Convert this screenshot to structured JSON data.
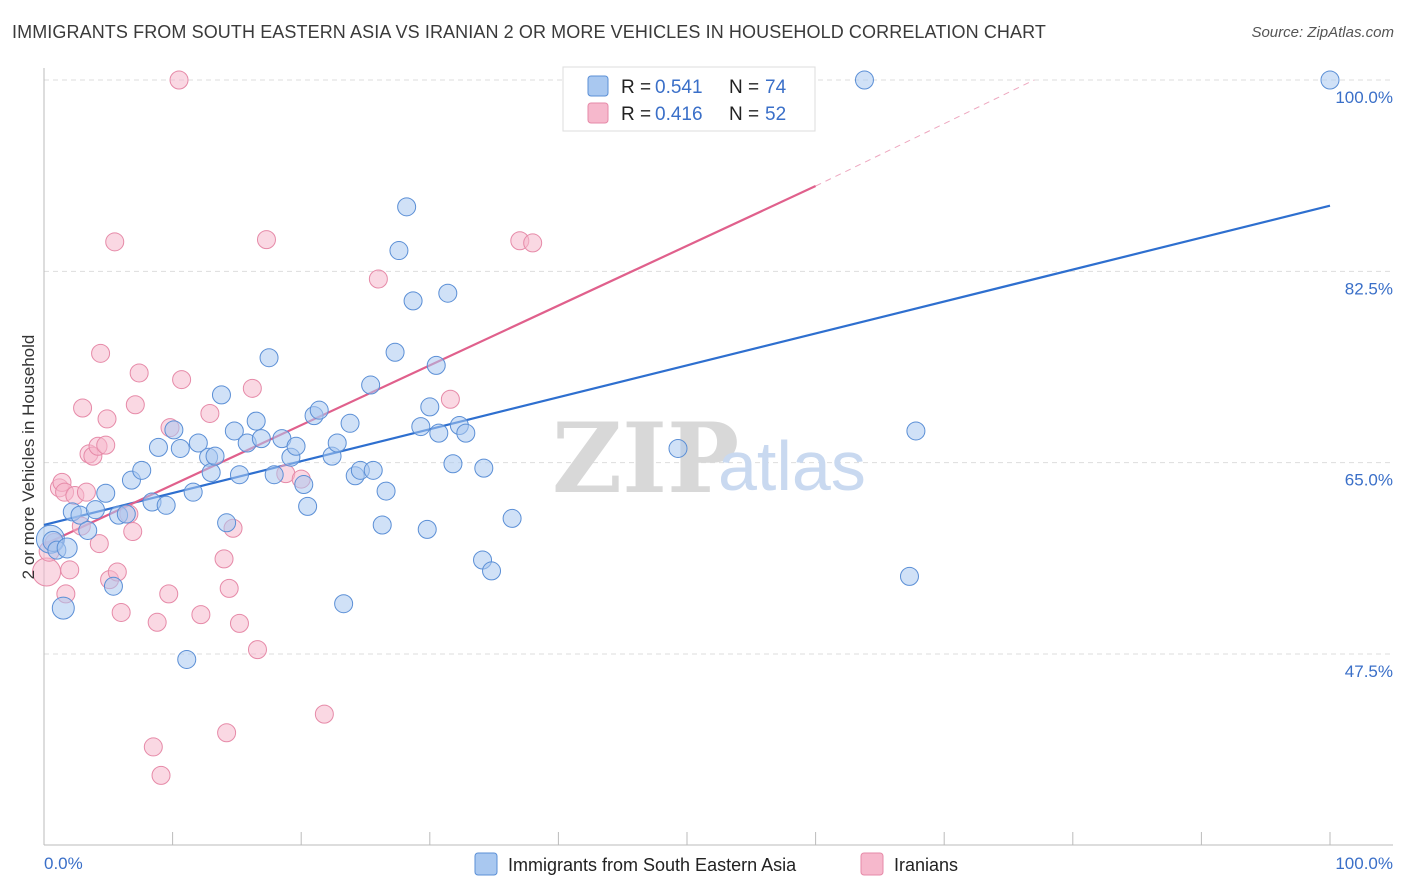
{
  "title": "IMMIGRANTS FROM SOUTH EASTERN ASIA VS IRANIAN 2 OR MORE VEHICLES IN HOUSEHOLD CORRELATION CHART",
  "source": "Source: ZipAtlas.com",
  "watermark": {
    "zip": "ZIP",
    "atlas": "atlas"
  },
  "colors": {
    "blue_fill": "#a9c8f0",
    "blue_stroke": "#5b8fd6",
    "blue_line": "#2e6fcf",
    "pink_fill": "#f6b8cc",
    "pink_stroke": "#e68aa8",
    "pink_line": "#e0608c",
    "tick_text": "#3a6fc8",
    "grid": "#dddddd"
  },
  "legend_box": {
    "rows": [
      {
        "r_label": "R =",
        "r_value": "0.541",
        "n_label": "N =",
        "n_value": "74",
        "color": "blue"
      },
      {
        "r_label": "R =",
        "r_value": "0.416",
        "n_label": "N =",
        "n_value": "52",
        "color": "pink"
      }
    ]
  },
  "chart_data": {
    "type": "scatter",
    "ylabel": "2 or more Vehicles in Household",
    "xlabel": "",
    "x_tick_labels": [
      "0.0%",
      "100.0%"
    ],
    "y_tick_labels": [
      "100.0%",
      "82.5%",
      "65.0%",
      "47.5%"
    ],
    "y_ticks": [
      100.0,
      82.5,
      65.0,
      47.5
    ],
    "xlim": [
      0,
      100
    ],
    "ylim": [
      32.9,
      101.5
    ],
    "grid": true,
    "legend": [
      "Immigrants from South Eastern Asia",
      "Iranians"
    ],
    "series": [
      {
        "name": "Immigrants from South Eastern Asia",
        "color": "blue",
        "trendline": {
          "x0": 0,
          "y0": 59.3,
          "x1": 100,
          "y1": 88.5
        },
        "points": [
          [
            0.5,
            58.0,
            14
          ],
          [
            0.7,
            57.8,
            10
          ],
          [
            1.0,
            57.0,
            9
          ],
          [
            1.5,
            51.7,
            11
          ],
          [
            1.8,
            57.2,
            10
          ],
          [
            2.2,
            60.5,
            9
          ],
          [
            2.8,
            60.2,
            9
          ],
          [
            3.4,
            58.8,
            9
          ],
          [
            4.0,
            60.7,
            9
          ],
          [
            4.8,
            62.2,
            9
          ],
          [
            5.4,
            53.7,
            9
          ],
          [
            5.8,
            60.2,
            9
          ],
          [
            6.4,
            60.3,
            9
          ],
          [
            6.8,
            63.4,
            9
          ],
          [
            7.6,
            64.3,
            9
          ],
          [
            8.4,
            61.4,
            9
          ],
          [
            8.9,
            66.4,
            9
          ],
          [
            9.5,
            61.1,
            9
          ],
          [
            10.1,
            68.0,
            9
          ],
          [
            10.6,
            66.3,
            9
          ],
          [
            11.1,
            47.0,
            9
          ],
          [
            11.6,
            62.3,
            9
          ],
          [
            12.0,
            66.8,
            9
          ],
          [
            12.8,
            65.5,
            9
          ],
          [
            13.0,
            64.1,
            9
          ],
          [
            13.3,
            65.6,
            9
          ],
          [
            13.8,
            71.2,
            9
          ],
          [
            14.2,
            59.5,
            9
          ],
          [
            14.8,
            67.9,
            9
          ],
          [
            15.2,
            63.9,
            9
          ],
          [
            15.8,
            66.8,
            9
          ],
          [
            16.5,
            68.8,
            9
          ],
          [
            16.9,
            67.2,
            9
          ],
          [
            17.5,
            74.6,
            9
          ],
          [
            17.9,
            63.9,
            9
          ],
          [
            18.5,
            67.2,
            9
          ],
          [
            19.2,
            65.5,
            9
          ],
          [
            19.6,
            66.5,
            9
          ],
          [
            20.2,
            63.0,
            9
          ],
          [
            20.5,
            61.0,
            9
          ],
          [
            21.0,
            69.3,
            9
          ],
          [
            21.4,
            69.8,
            9
          ],
          [
            22.4,
            65.6,
            9
          ],
          [
            22.8,
            66.8,
            9
          ],
          [
            23.3,
            52.1,
            9
          ],
          [
            23.8,
            68.6,
            9
          ],
          [
            24.2,
            63.8,
            9
          ],
          [
            24.6,
            64.3,
            9
          ],
          [
            25.4,
            72.1,
            9
          ],
          [
            25.6,
            64.3,
            9
          ],
          [
            26.3,
            59.3,
            9
          ],
          [
            26.6,
            62.4,
            9
          ],
          [
            27.3,
            75.1,
            9
          ],
          [
            27.6,
            84.4,
            9
          ],
          [
            28.2,
            88.4,
            9
          ],
          [
            28.7,
            79.8,
            9
          ],
          [
            29.3,
            68.3,
            9
          ],
          [
            29.8,
            58.9,
            9
          ],
          [
            30.0,
            70.1,
            9
          ],
          [
            30.5,
            73.9,
            9
          ],
          [
            30.7,
            67.7,
            9
          ],
          [
            31.4,
            80.5,
            9
          ],
          [
            31.8,
            64.9,
            9
          ],
          [
            32.3,
            68.4,
            9
          ],
          [
            32.8,
            67.7,
            9
          ],
          [
            34.2,
            64.5,
            9
          ],
          [
            34.1,
            56.1,
            9
          ],
          [
            34.8,
            55.1,
            9
          ],
          [
            36.4,
            59.9,
            9
          ],
          [
            49.3,
            66.3,
            9
          ],
          [
            63.8,
            100.0,
            9
          ],
          [
            67.8,
            67.9,
            9
          ],
          [
            67.3,
            54.6,
            9
          ],
          [
            100.0,
            100.0,
            9
          ]
        ]
      },
      {
        "name": "Iranians",
        "color": "pink",
        "trendline": {
          "x0": 0,
          "y0": 57.5,
          "x1": 60,
          "y1": 90.3,
          "dash_x1": 77,
          "dash_y1": 100.0
        },
        "points": [
          [
            0.2,
            55.0,
            14
          ],
          [
            0.4,
            56.9,
            10
          ],
          [
            0.8,
            57.7,
            9
          ],
          [
            1.2,
            62.7,
            9
          ],
          [
            1.4,
            63.2,
            9
          ],
          [
            1.6,
            62.3,
            9
          ],
          [
            1.7,
            53.0,
            9
          ],
          [
            2.0,
            55.2,
            9
          ],
          [
            2.4,
            62.0,
            9
          ],
          [
            2.9,
            59.2,
            9
          ],
          [
            3.0,
            70.0,
            9
          ],
          [
            3.3,
            62.3,
            9
          ],
          [
            3.5,
            65.8,
            9
          ],
          [
            3.8,
            65.6,
            9
          ],
          [
            4.2,
            66.5,
            9
          ],
          [
            4.3,
            57.6,
            9
          ],
          [
            4.4,
            75.0,
            9
          ],
          [
            4.8,
            66.6,
            9
          ],
          [
            4.9,
            69.0,
            9
          ],
          [
            5.1,
            54.3,
            9
          ],
          [
            5.5,
            85.2,
            9
          ],
          [
            5.7,
            55.0,
            9
          ],
          [
            6.0,
            51.3,
            9
          ],
          [
            6.6,
            60.3,
            9
          ],
          [
            6.9,
            58.7,
            9
          ],
          [
            7.1,
            70.3,
            9
          ],
          [
            7.4,
            73.2,
            9
          ],
          [
            8.5,
            39.0,
            9
          ],
          [
            8.8,
            50.4,
            9
          ],
          [
            9.1,
            36.4,
            9
          ],
          [
            9.7,
            53.0,
            9
          ],
          [
            9.8,
            68.2,
            9
          ],
          [
            10.5,
            100.0,
            9
          ],
          [
            10.7,
            72.6,
            9
          ],
          [
            12.2,
            51.1,
            9
          ],
          [
            12.9,
            69.5,
            9
          ],
          [
            14.0,
            56.2,
            9
          ],
          [
            14.2,
            40.3,
            9
          ],
          [
            14.4,
            53.5,
            9
          ],
          [
            14.7,
            59.0,
            9
          ],
          [
            15.2,
            50.3,
            9
          ],
          [
            16.2,
            71.8,
            9
          ],
          [
            16.6,
            47.9,
            9
          ],
          [
            17.3,
            85.4,
            9
          ],
          [
            18.8,
            64.0,
            9
          ],
          [
            20.0,
            63.5,
            9
          ],
          [
            21.8,
            42.0,
            9
          ],
          [
            26.0,
            81.8,
            9
          ],
          [
            31.6,
            70.8,
            9
          ],
          [
            37.0,
            85.3,
            9
          ],
          [
            38.0,
            85.1,
            9
          ],
          [
            52.6,
            100.0,
            9
          ]
        ]
      }
    ]
  },
  "bottom_legend": [
    {
      "label": "Immigrants from South Eastern Asia",
      "color": "blue"
    },
    {
      "label": "Iranians",
      "color": "pink"
    }
  ]
}
